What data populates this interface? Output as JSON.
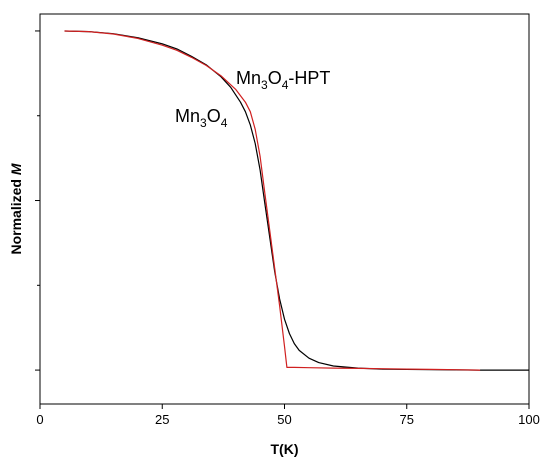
{
  "chart_data": {
    "type": "line",
    "xlabel": "T(K)",
    "ylabel_prefix": "Normalized ",
    "ylabel_var": "M",
    "xlim": [
      0,
      100
    ],
    "xticks": [
      0,
      25,
      50,
      75,
      100
    ],
    "xtick_labels": [
      "0",
      "25",
      "50",
      "75",
      "100"
    ],
    "ylim": [
      -0.1,
      1.05
    ],
    "yticks_major": [
      0,
      0.5,
      1
    ],
    "yticks_minor": [
      0.25,
      0.75
    ],
    "grid": false,
    "legend": "none",
    "annotations": [
      {
        "id": "hpt",
        "base": "Mn",
        "sub1": "3",
        "mid": "O",
        "sub2": "4",
        "suffix": "-HPT"
      },
      {
        "id": "plain",
        "base": "Mn",
        "sub1": "3",
        "mid": "O",
        "sub2": "4",
        "suffix": ""
      }
    ],
    "series": [
      {
        "color": "#000000",
        "x": [
          5,
          10,
          15,
          20,
          25,
          28,
          31,
          34,
          37,
          39,
          41,
          42,
          43,
          44,
          45,
          46,
          47,
          48,
          49,
          50,
          51,
          52,
          53,
          55,
          57,
          60,
          65,
          70,
          80,
          90,
          100
        ],
        "y": [
          1.0,
          0.998,
          0.992,
          0.98,
          0.962,
          0.947,
          0.925,
          0.9,
          0.865,
          0.834,
          0.79,
          0.762,
          0.723,
          0.668,
          0.59,
          0.49,
          0.39,
          0.29,
          0.21,
          0.15,
          0.108,
          0.078,
          0.058,
          0.035,
          0.022,
          0.012,
          0.006,
          0.003,
          0.001,
          0.0,
          0.0
        ]
      },
      {
        "color": "#d02020",
        "x": [
          5,
          10,
          15,
          20,
          25,
          28,
          31,
          34,
          37,
          40,
          42,
          43,
          44,
          45,
          46,
          47,
          48,
          49,
          50,
          50.5,
          52,
          55,
          60,
          65,
          70,
          75,
          80,
          85,
          90
        ],
        "y": [
          1.0,
          0.998,
          0.991,
          0.978,
          0.958,
          0.943,
          0.922,
          0.898,
          0.868,
          0.828,
          0.79,
          0.762,
          0.71,
          0.63,
          0.52,
          0.41,
          0.3,
          0.19,
          0.07,
          0.008,
          0.008,
          0.007,
          0.006,
          0.005,
          0.004,
          0.003,
          0.002,
          0.001,
          0.0
        ]
      }
    ]
  }
}
